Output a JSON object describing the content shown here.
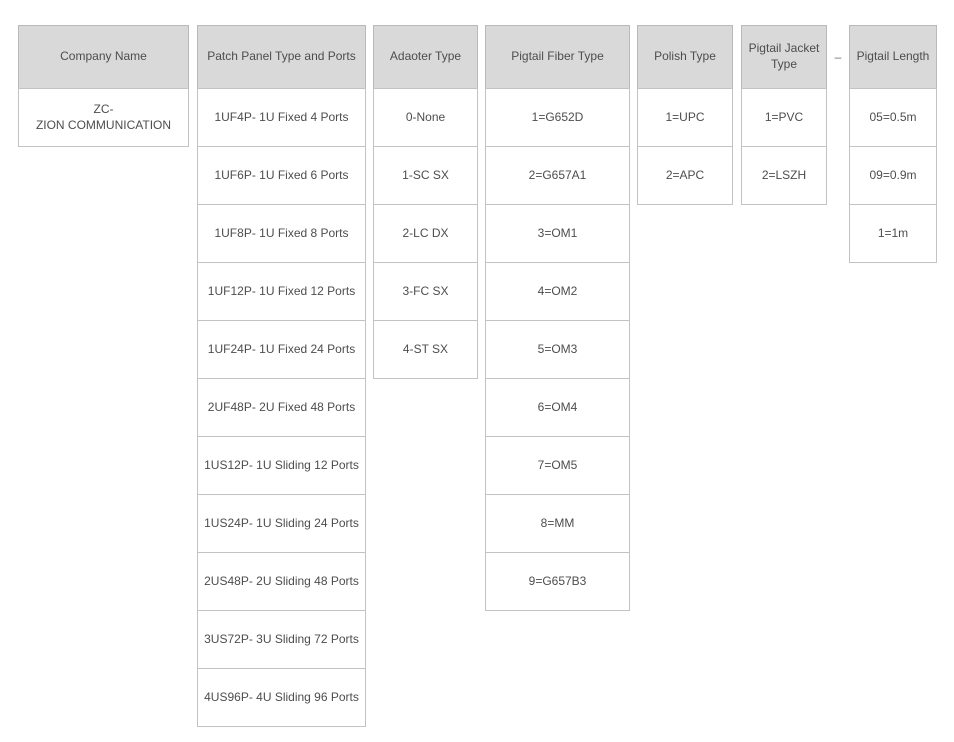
{
  "colors": {
    "header_bg": "#d9d9d9",
    "border": "#c3c3c3",
    "text": "#4d4d4d",
    "background": "#ffffff"
  },
  "separator": "–",
  "columns": [
    {
      "title": "Company Name",
      "rows": [
        "ZC-\nZION COMMUNICATION"
      ]
    },
    {
      "title": "Patch Panel Type and Ports",
      "rows": [
        "1UF4P- 1U Fixed 4 Ports",
        "1UF6P- 1U Fixed 6 Ports",
        "1UF8P- 1U Fixed 8 Ports",
        "1UF12P- 1U Fixed 12 Ports",
        "1UF24P- 1U Fixed 24 Ports",
        "2UF48P- 2U Fixed 48 Ports",
        "1US12P- 1U Sliding 12 Ports",
        "1US24P- 1U Sliding 24 Ports",
        "2US48P- 2U Sliding 48 Ports",
        "3US72P- 3U Sliding 72 Ports",
        "4US96P- 4U Sliding 96 Ports"
      ]
    },
    {
      "title": "Adaoter Type",
      "rows": [
        "0-None",
        "1-SC SX",
        "2-LC DX",
        "3-FC SX",
        "4-ST SX"
      ]
    },
    {
      "title": "Pigtail Fiber Type",
      "rows": [
        "1=G652D",
        "2=G657A1",
        "3=OM1",
        "4=OM2",
        "5=OM3",
        "6=OM4",
        "7=OM5",
        "8=MM",
        "9=G657B3"
      ]
    },
    {
      "title": "Polish Type",
      "rows": [
        "1=UPC",
        "2=APC"
      ]
    },
    {
      "title": "Pigtail Jacket\nType",
      "rows": [
        "1=PVC",
        "2=LSZH"
      ]
    },
    {
      "title": "Pigtail Length",
      "rows": [
        "05=0.5m",
        "09=0.9m",
        "1=1m"
      ]
    }
  ]
}
